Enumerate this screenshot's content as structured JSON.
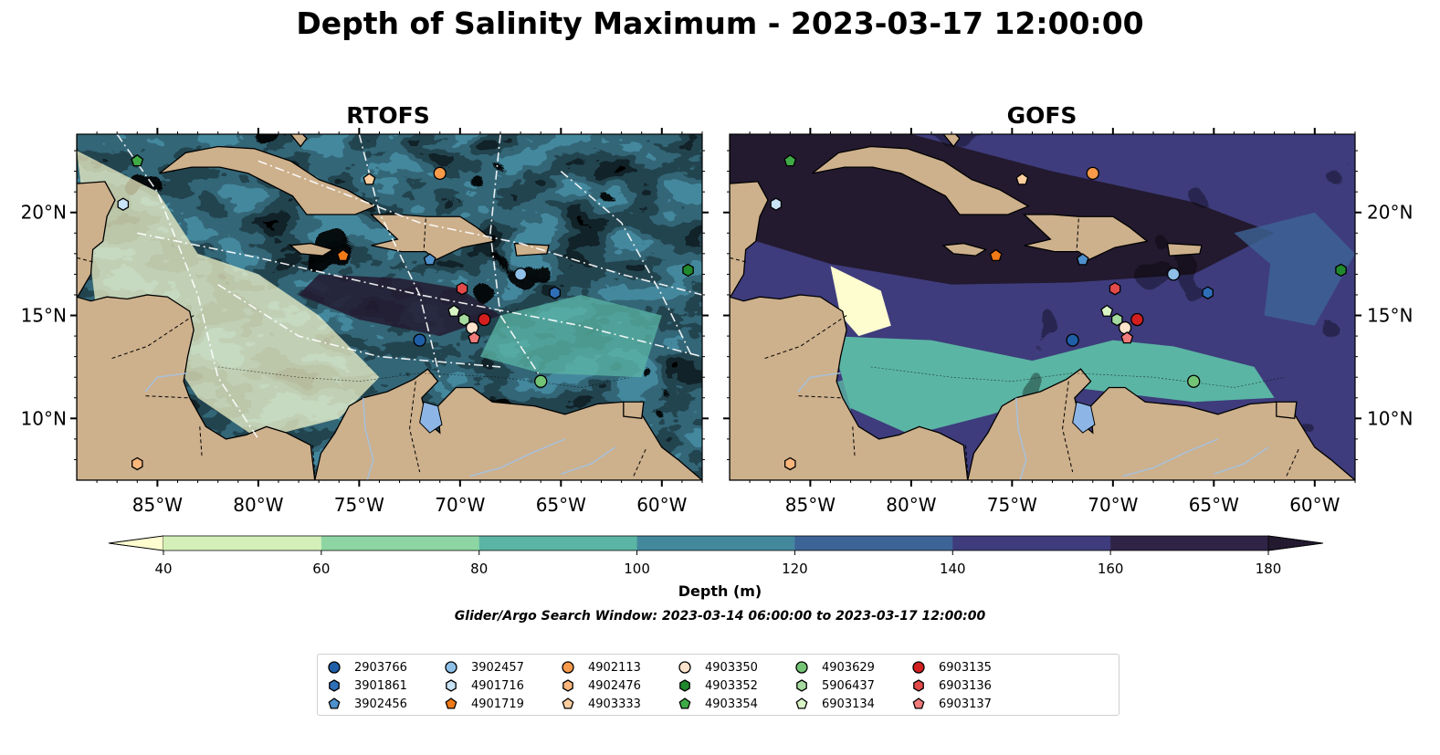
{
  "suptitle": "Depth of Salinity Maximum - 2023-03-17 12:00:00",
  "panels": [
    {
      "title": "RTOFS",
      "kind": "rtofs"
    },
    {
      "title": "GOFS",
      "kind": "gofs"
    }
  ],
  "map_extent": {
    "lon_min": -89,
    "lon_max": -58,
    "lat_min": 7,
    "lat_max": 23.8
  },
  "lon_ticks": [
    {
      "value": -85,
      "label": "85°W"
    },
    {
      "value": -80,
      "label": "80°W"
    },
    {
      "value": -75,
      "label": "75°W"
    },
    {
      "value": -70,
      "label": "70°W"
    },
    {
      "value": -65,
      "label": "65°W"
    },
    {
      "value": -60,
      "label": "60°W"
    }
  ],
  "lat_ticks": [
    {
      "value": 10,
      "label": "10°N"
    },
    {
      "value": 15,
      "label": "15°N"
    },
    {
      "value": 20,
      "label": "20°N"
    }
  ],
  "colorbar": {
    "label": "Depth (m)",
    "ticks": [
      40,
      60,
      80,
      100,
      120,
      140,
      160,
      180
    ],
    "colors": [
      "#d4f0b8",
      "#8dd6a3",
      "#5bb5a4",
      "#44889e",
      "#3d6496",
      "#3e3c7c",
      "#2f2446"
    ],
    "under_color": "#fdfdd0",
    "over_color": "#231a30"
  },
  "colors": {
    "land": "#cdb08c",
    "lake": "#8db6e6",
    "river": "#a7c1db"
  },
  "search_window": "Glider/Argo Search Window: 2023-03-14 06:00:00 to 2023-03-17 12:00:00",
  "floats": [
    {
      "id": "2903766",
      "marker": "circle",
      "color": "#1f5fa8",
      "lon": -72.0,
      "lat": 13.8
    },
    {
      "id": "3901861",
      "marker": "hexagon",
      "color": "#2e6fb8",
      "lon": -65.3,
      "lat": 16.1
    },
    {
      "id": "3902456",
      "marker": "pentagon",
      "color": "#4f91cc",
      "lon": -71.5,
      "lat": 17.7
    },
    {
      "id": "3902457",
      "marker": "circle",
      "color": "#8ec0e8",
      "lon": -67.0,
      "lat": 17.0
    },
    {
      "id": "4901716",
      "marker": "hexagon",
      "color": "#c8e2f6",
      "lon": -86.7,
      "lat": 20.4
    },
    {
      "id": "4901719",
      "marker": "pentagon",
      "color": "#f07a18",
      "lon": -75.8,
      "lat": 17.9
    },
    {
      "id": "4902113",
      "marker": "circle",
      "color": "#f79a4a",
      "lon": -71.0,
      "lat": 21.9
    },
    {
      "id": "4902476",
      "marker": "hexagon",
      "color": "#fbb67c",
      "lon": -86.0,
      "lat": 7.8
    },
    {
      "id": "4903333",
      "marker": "pentagon",
      "color": "#fdcfa0",
      "lon": -74.5,
      "lat": 21.6
    },
    {
      "id": "4903350",
      "marker": "circle",
      "color": "#fde3cc",
      "lon": -69.4,
      "lat": 14.4
    },
    {
      "id": "4903352",
      "marker": "hexagon",
      "color": "#21892d",
      "lon": -58.7,
      "lat": 17.2
    },
    {
      "id": "4903354",
      "marker": "pentagon",
      "color": "#3fab46",
      "lon": -86.0,
      "lat": 22.5
    },
    {
      "id": "4903629",
      "marker": "circle",
      "color": "#74c476",
      "lon": -66.0,
      "lat": 11.8
    },
    {
      "id": "5906437",
      "marker": "hexagon",
      "color": "#a6dba0",
      "lon": -69.8,
      "lat": 14.8
    },
    {
      "id": "6903134",
      "marker": "pentagon",
      "color": "#d9f5c6",
      "lon": -70.3,
      "lat": 15.2
    },
    {
      "id": "6903135",
      "marker": "circle",
      "color": "#d41f1f",
      "lon": -68.8,
      "lat": 14.8
    },
    {
      "id": "6903136",
      "marker": "hexagon",
      "color": "#e34a4a",
      "lon": -69.9,
      "lat": 16.3
    },
    {
      "id": "6903137",
      "marker": "pentagon",
      "color": "#f07b7b",
      "lon": -69.3,
      "lat": 13.9
    }
  ]
}
